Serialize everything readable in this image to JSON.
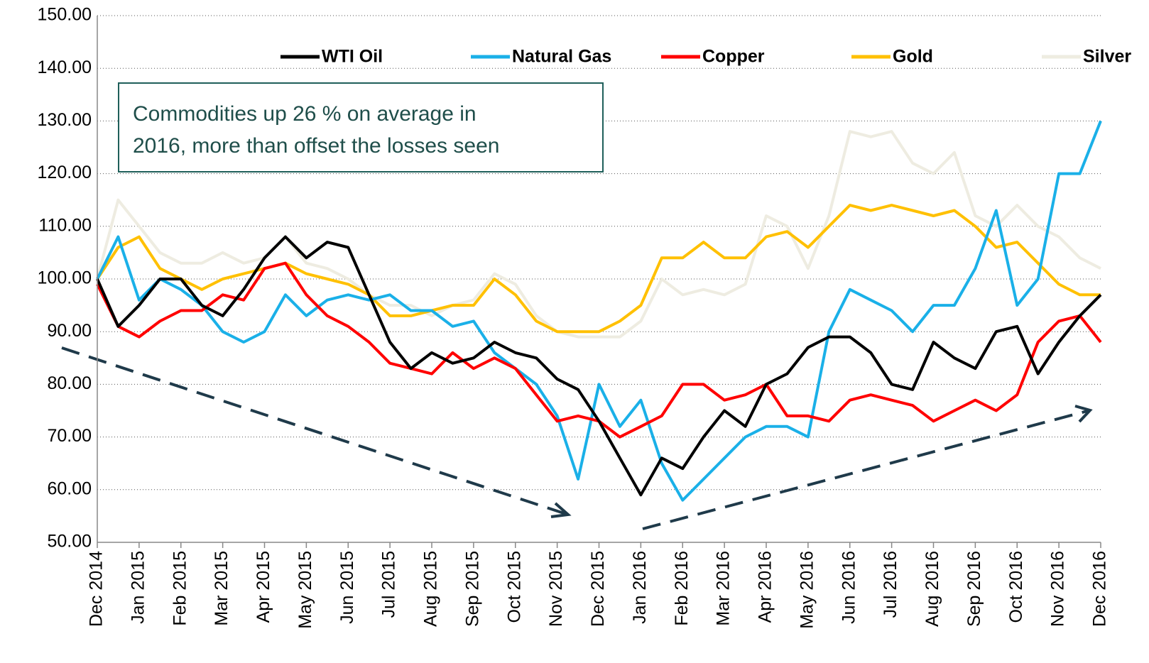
{
  "chart_data": {
    "type": "line",
    "annotation": [
      "Commodities up 26 % on average in",
      "2016, more than offset the losses seen"
    ],
    "categories": [
      "Dec 2014",
      null,
      "Jan 2015",
      null,
      "Feb 2015",
      null,
      "Mar 2015",
      null,
      "Apr 2015",
      null,
      "May 2015",
      null,
      "Jun 2015",
      null,
      "Jul 2015",
      null,
      "Aug 2015",
      null,
      "Sep 2015",
      null,
      "Oct 2015",
      null,
      "Nov 2015",
      null,
      "Dec 2015",
      null,
      "Jan 2016",
      null,
      "Feb 2016",
      null,
      "Mar 2016",
      null,
      "Apr 2016",
      null,
      "May 2016",
      null,
      "Jun 2016",
      null,
      "Jul 2016",
      null,
      "Aug 2016",
      null,
      "Sep 2016",
      null,
      "Oct 2016",
      null,
      "Nov 2016",
      null,
      "Dec 2016"
    ],
    "series": [
      {
        "name": "WTI Oil",
        "color": "#000000",
        "values": [
          100,
          91,
          95,
          100,
          100,
          95,
          93,
          98,
          104,
          108,
          104,
          107,
          106,
          97,
          88,
          83,
          86,
          84,
          85,
          88,
          86,
          85,
          81,
          79,
          73,
          66,
          59,
          66,
          64,
          70,
          75,
          72,
          80,
          82,
          87,
          89,
          89,
          86,
          80,
          79,
          88,
          85,
          83,
          90,
          91,
          82,
          88,
          93,
          97
        ]
      },
      {
        "name": "Natural Gas",
        "color": "#1ab0e8",
        "values": [
          100,
          108,
          96,
          100,
          98,
          95,
          90,
          88,
          90,
          97,
          93,
          96,
          97,
          96,
          97,
          94,
          94,
          91,
          92,
          86,
          83,
          80,
          74,
          62,
          80,
          72,
          77,
          65,
          58,
          62,
          66,
          70,
          72,
          72,
          70,
          90,
          98,
          96,
          94,
          90,
          95,
          95,
          102,
          113,
          95,
          100,
          120,
          120,
          130
        ]
      },
      {
        "name": "Copper",
        "color": "#ff0000",
        "values": [
          99,
          91,
          89,
          92,
          94,
          94,
          97,
          96,
          102,
          103,
          97,
          93,
          91,
          88,
          84,
          83,
          82,
          86,
          83,
          85,
          83,
          78,
          73,
          74,
          73,
          70,
          72,
          74,
          80,
          80,
          77,
          78,
          80,
          74,
          74,
          73,
          77,
          78,
          77,
          76,
          73,
          75,
          77,
          75,
          78,
          88,
          92,
          93,
          88
        ]
      },
      {
        "name": "Gold",
        "color": "#ffc000",
        "values": [
          100,
          106,
          108,
          102,
          100,
          98,
          100,
          101,
          102,
          103,
          101,
          100,
          99,
          97,
          93,
          93,
          94,
          95,
          95,
          100,
          97,
          92,
          90,
          90,
          90,
          92,
          95,
          104,
          104,
          107,
          104,
          104,
          108,
          109,
          106,
          110,
          114,
          113,
          114,
          113,
          112,
          113,
          110,
          106,
          107,
          103,
          99,
          97,
          97
        ]
      },
      {
        "name": "Silver",
        "color": "#eeece1",
        "values": [
          100,
          115,
          110,
          105,
          103,
          103,
          105,
          103,
          104,
          108,
          103,
          102,
          100,
          97,
          95,
          95,
          93,
          95,
          96,
          101,
          99,
          93,
          90,
          89,
          89,
          89,
          92,
          100,
          97,
          98,
          97,
          99,
          112,
          110,
          102,
          112,
          128,
          127,
          128,
          122,
          120,
          124,
          112,
          110,
          114,
          110,
          108,
          104,
          102
        ]
      }
    ],
    "ylim": [
      50,
      150
    ],
    "yticks": [
      {
        "value": 50,
        "label": "50.00"
      },
      {
        "value": 60,
        "label": "60.00"
      },
      {
        "value": 70,
        "label": "70.00"
      },
      {
        "value": 80,
        "label": "80.00"
      },
      {
        "value": 90,
        "label": "90.00"
      },
      {
        "value": 100,
        "label": "100.00"
      },
      {
        "value": 110,
        "label": "110.00"
      },
      {
        "value": 120,
        "label": "120.00"
      },
      {
        "value": 130,
        "label": "130.00"
      },
      {
        "value": 140,
        "label": "140.00"
      },
      {
        "value": 150,
        "label": "150.00"
      }
    ],
    "grid": true
  }
}
